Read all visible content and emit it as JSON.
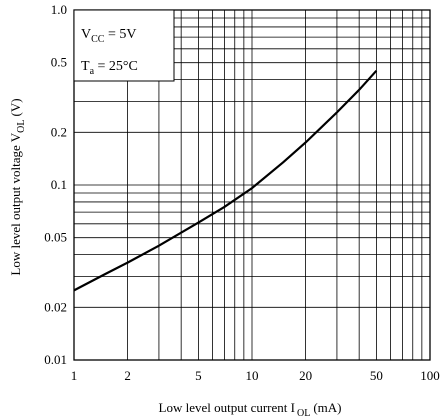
{
  "chart_data": {
    "type": "line",
    "x_scale": "log",
    "y_scale": "log",
    "xlim": [
      1,
      100
    ],
    "ylim": [
      0.01,
      1.0
    ],
    "x_ticks": [
      1,
      2,
      5,
      10,
      20,
      50,
      100
    ],
    "x_tick_labels": [
      "1",
      "2",
      "5",
      "10",
      "20",
      "50",
      "100"
    ],
    "y_ticks": [
      0.01,
      0.02,
      0.05,
      0.1,
      0.2,
      0.5,
      1.0
    ],
    "y_tick_labels": [
      "0.01",
      "0.02",
      "0.05",
      "0.1",
      "0.2",
      "0.5",
      "1.0"
    ],
    "xlabel": {
      "main": "Low level output current I",
      "sub": "OL",
      "unit": "(mA)"
    },
    "ylabel": {
      "main": "Low level output voltage V",
      "sub": "OL",
      "unit": "(V)"
    },
    "grid": true,
    "annotations": {
      "vcc": {
        "main": "V",
        "sub": "CC",
        "rest": " = 5V"
      },
      "ta": {
        "main": "T",
        "sub": "a",
        "rest": " = 25°C"
      }
    },
    "series": [
      {
        "x": [
          1,
          1.5,
          2,
          3,
          5,
          7,
          10,
          15,
          20,
          30,
          40,
          50
        ],
        "y": [
          0.025,
          0.031,
          0.036,
          0.045,
          0.061,
          0.075,
          0.096,
          0.135,
          0.175,
          0.26,
          0.35,
          0.45
        ]
      }
    ]
  }
}
